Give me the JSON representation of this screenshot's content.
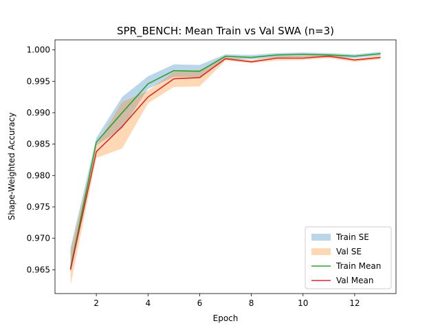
{
  "chart_data": {
    "type": "line",
    "title": "SPR_BENCH: Mean Train vs Val SWA (n=3)",
    "xlabel": "Epoch",
    "ylabel": "Shape-Weighted Accuracy",
    "xlim": [
      0.4,
      13.6
    ],
    "ylim": [
      0.9612,
      1.0016
    ],
    "xticks": [
      2,
      4,
      6,
      8,
      10,
      12
    ],
    "yticks": [
      0.965,
      0.97,
      0.975,
      0.98,
      0.985,
      0.99,
      0.995,
      1.0
    ],
    "ytick_labels": [
      "0.965",
      "0.970",
      "0.975",
      "0.980",
      "0.985",
      "0.990",
      "0.995",
      "1.000"
    ],
    "grid": false,
    "legend_position": "lower-right",
    "x": [
      1,
      2,
      3,
      4,
      5,
      6,
      7,
      8,
      9,
      10,
      11,
      12,
      13
    ],
    "bands": [
      {
        "name": "Train SE",
        "color": "#1f77b4",
        "opacity": 0.3,
        "lower": [
          0.9645,
          0.9848,
          0.9875,
          0.9938,
          0.9957,
          0.9957,
          0.9985,
          0.9985,
          0.9988,
          0.9989,
          0.9988,
          0.9987,
          0.9991
        ],
        "upper": [
          0.9685,
          0.986,
          0.9925,
          0.9958,
          0.9977,
          0.9976,
          0.9993,
          0.9992,
          0.9995,
          0.9996,
          0.9995,
          0.9993,
          0.9997
        ]
      },
      {
        "name": "Val SE",
        "color": "#ff7f0e",
        "opacity": 0.3,
        "lower": [
          0.9625,
          0.9828,
          0.9843,
          0.9915,
          0.9941,
          0.9942,
          0.9983,
          0.9979,
          0.9983,
          0.9984,
          0.9987,
          0.9981,
          0.9985
        ],
        "upper": [
          0.968,
          0.9848,
          0.9917,
          0.9935,
          0.9965,
          0.9968,
          0.9989,
          0.9984,
          0.999,
          0.9991,
          0.9993,
          0.9986,
          0.9991
        ]
      }
    ],
    "series": [
      {
        "name": "Train Mean",
        "color": "#2ca02c",
        "values": [
          0.9652,
          0.9853,
          0.99,
          0.9946,
          0.9967,
          0.9966,
          0.999,
          0.9988,
          0.9992,
          0.9993,
          0.9992,
          0.999,
          0.9994
        ]
      },
      {
        "name": "Val Mean",
        "color": "#d62728",
        "values": [
          0.965,
          0.9838,
          0.9878,
          0.9925,
          0.9954,
          0.9956,
          0.9986,
          0.9981,
          0.9987,
          0.9987,
          0.999,
          0.9984,
          0.9988
        ]
      }
    ]
  }
}
